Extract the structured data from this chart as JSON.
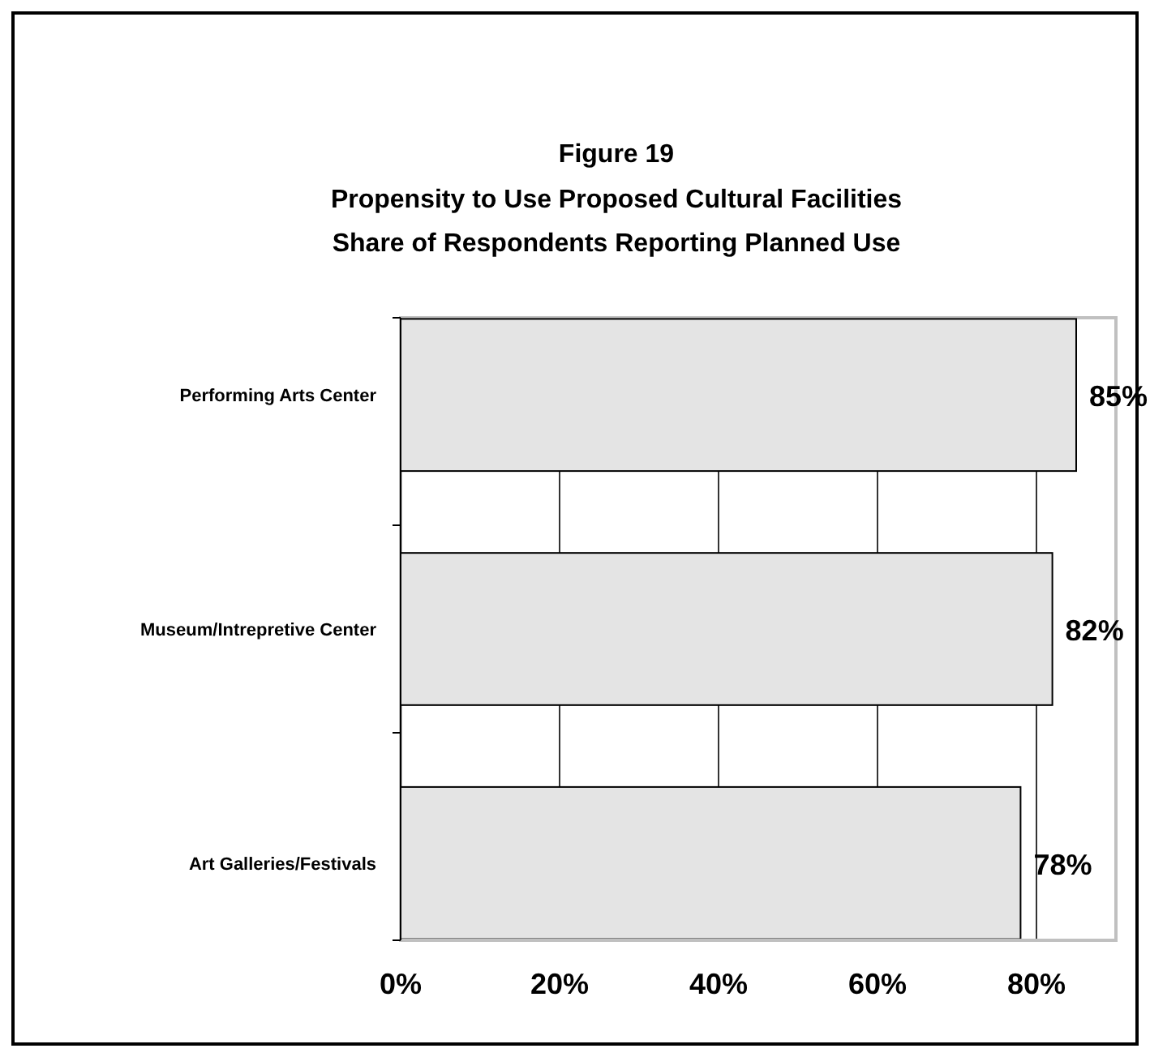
{
  "chart_data": {
    "type": "bar",
    "orientation": "horizontal",
    "title": "Figure 19",
    "subtitle": "Propensity to Use Proposed Cultural Facilities\nShare of Respondents Reporting Planned Use",
    "categories": [
      "Performing Arts Center",
      "Museum/Intrepretive Center",
      "Art Galleries/Festivals"
    ],
    "values": [
      85,
      82,
      78
    ],
    "color": "#e4e4e4",
    "value_labels": [
      "85%",
      "82%",
      "78%"
    ],
    "xlim": [
      0,
      90
    ],
    "xticks": [
      {
        "value": 0,
        "label": "0%"
      },
      {
        "value": 20,
        "label": "20%"
      },
      {
        "value": 40,
        "label": "40%"
      },
      {
        "value": 60,
        "label": "60%"
      },
      {
        "value": 80,
        "label": "80%"
      }
    ],
    "grid": "x"
  }
}
